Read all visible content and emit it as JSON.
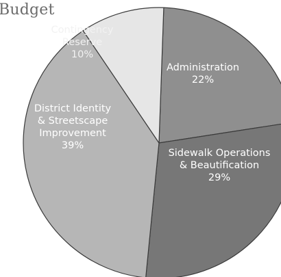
{
  "chart_data": {
    "type": "pie",
    "title": "Budget",
    "slices": [
      {
        "label_lines": [
          "Administration",
          "22%"
        ],
        "value": 22,
        "color": "#8f8f8f"
      },
      {
        "label_lines": [
          "Sidewalk Operations",
          "& Beautification",
          "29%"
        ],
        "value": 29,
        "color": "#777777"
      },
      {
        "label_lines": [
          "District Identity",
          "& Streetscape",
          "Improvement",
          "39%"
        ],
        "value": 39,
        "color": "#b6b6b6"
      },
      {
        "label_lines": [
          "Contingency",
          "Reserve",
          "10%"
        ],
        "value": 10,
        "color": "#e6e6e6"
      }
    ]
  }
}
